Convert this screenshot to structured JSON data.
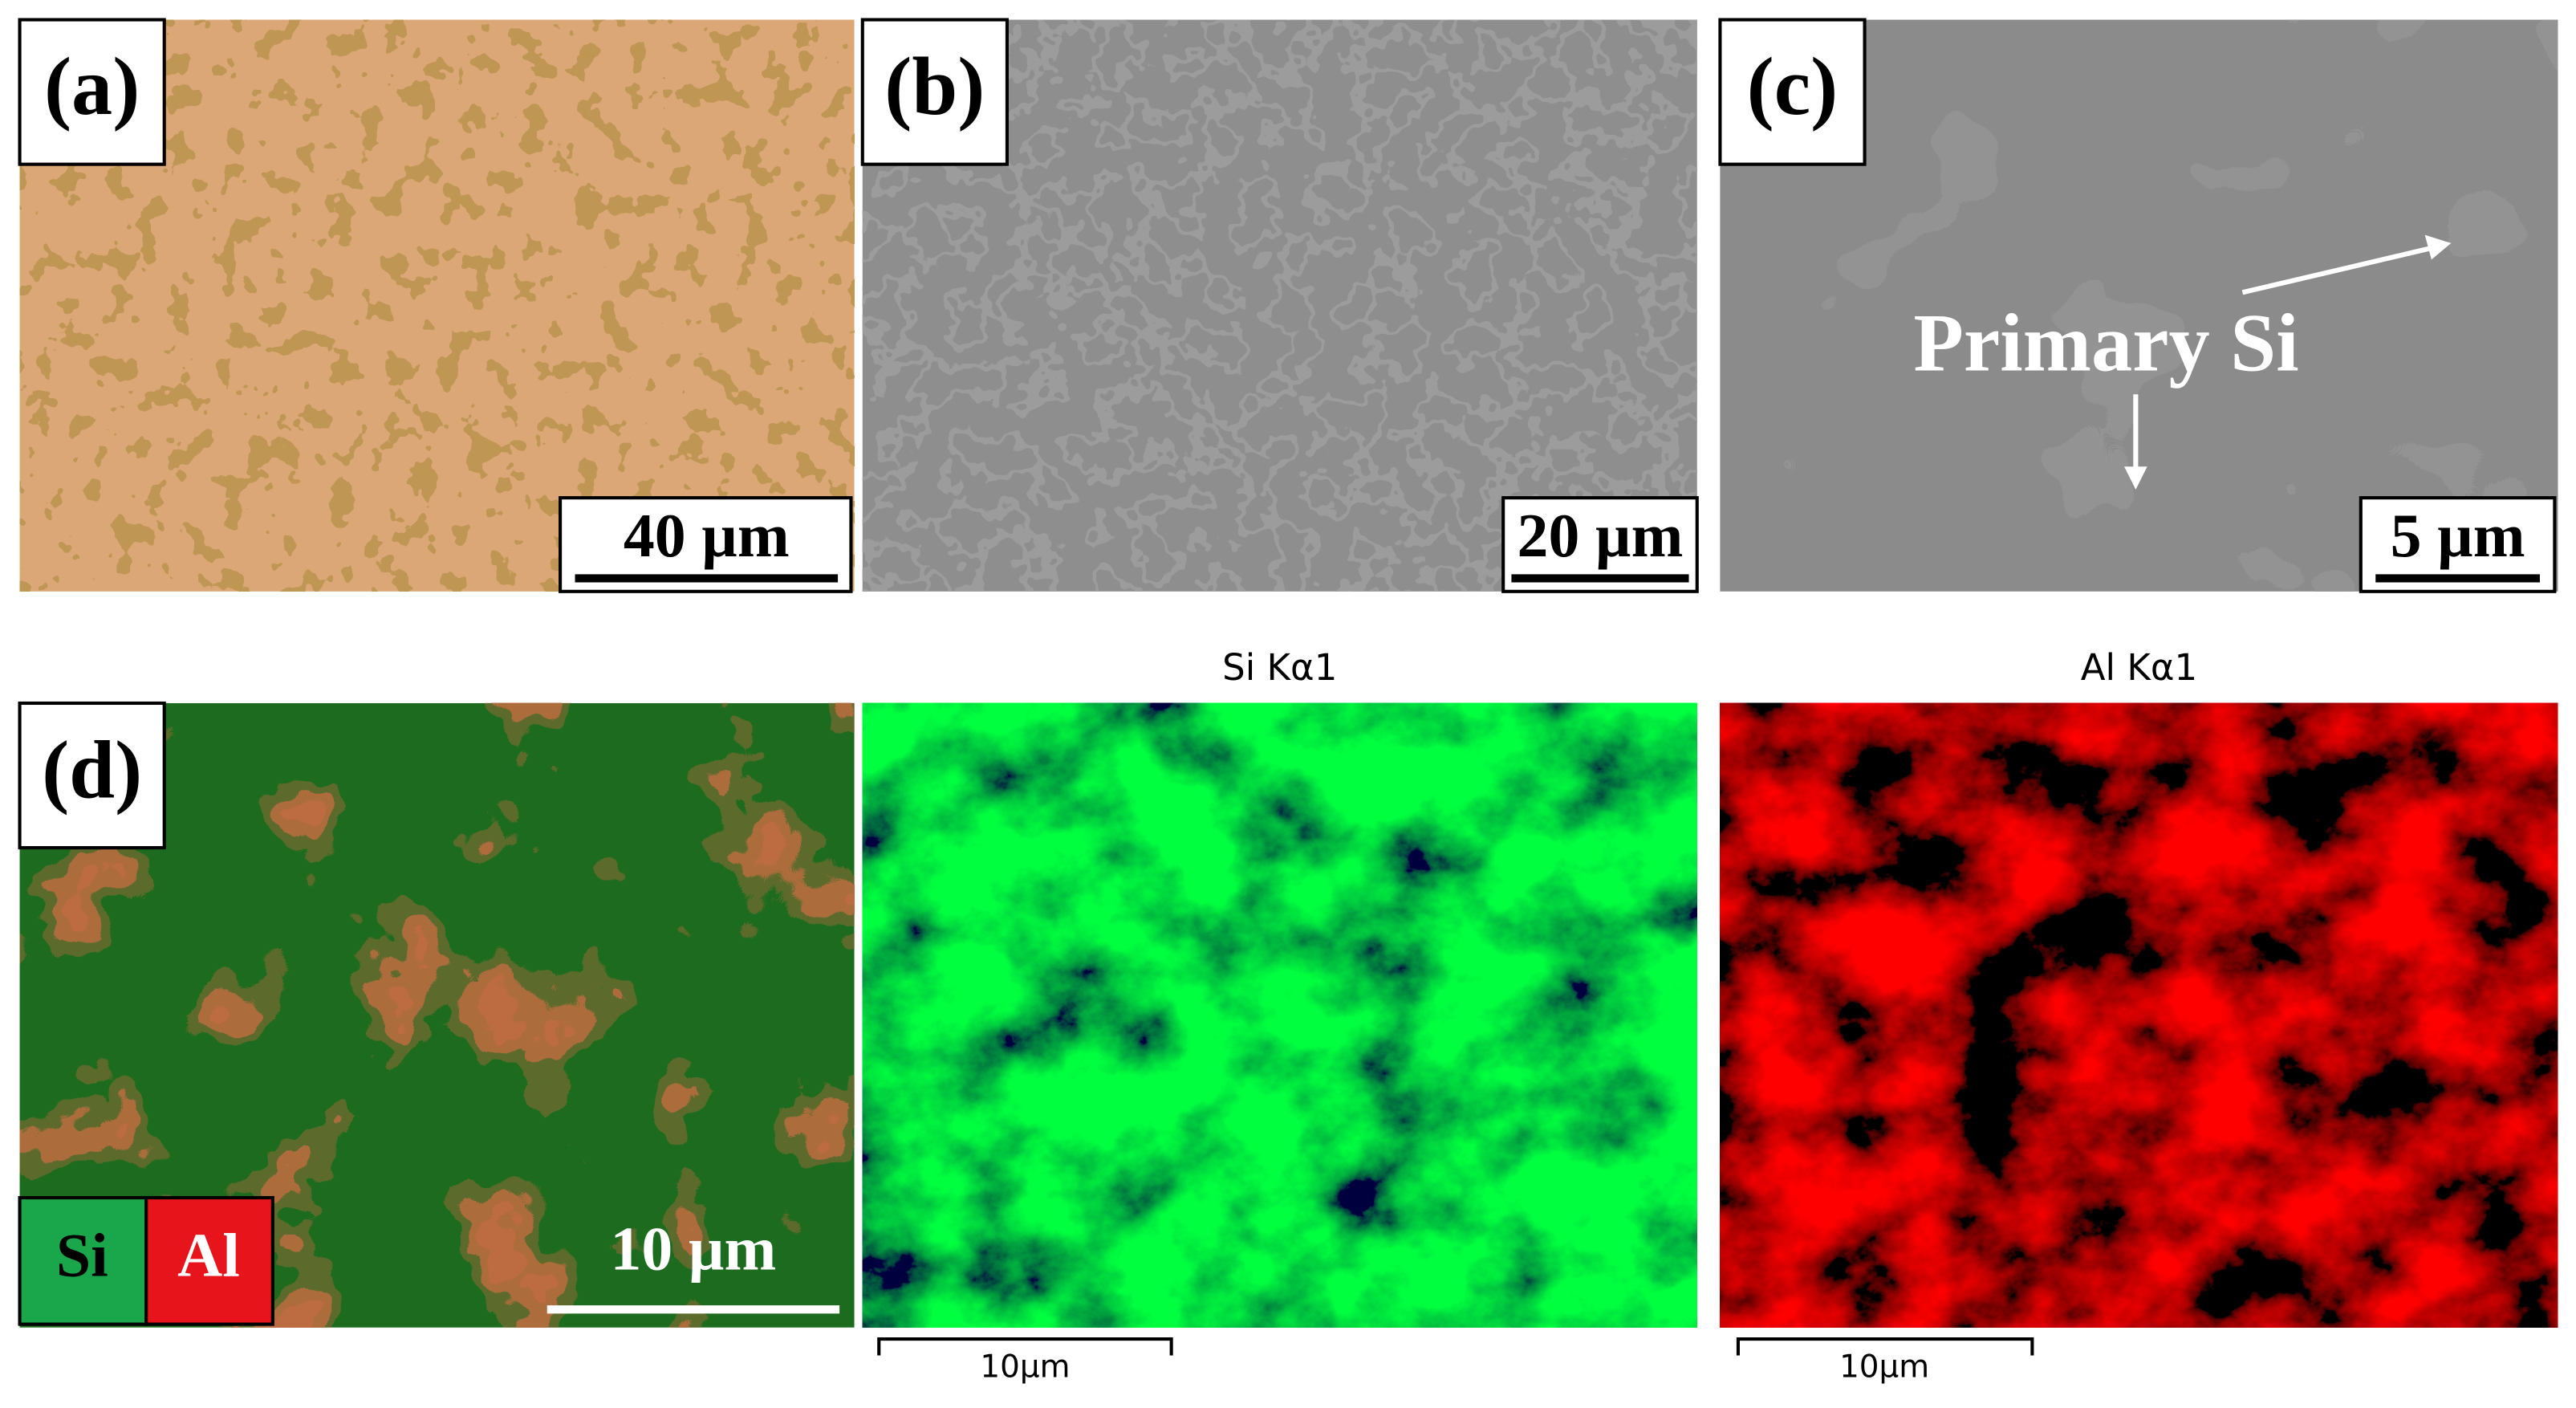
{
  "panels": [
    {
      "label": "(a)",
      "scale_bar": "40 µm"
    },
    {
      "label": "(b)",
      "scale_bar": "20 µm"
    },
    {
      "label": "(c)",
      "scale_bar": "5 µm",
      "annotation": "Primary Si"
    },
    {
      "label": "(d)",
      "scale_bar": "10 µm",
      "legend": [
        "Si",
        "Al"
      ]
    }
  ],
  "maps": [
    {
      "title": "Si Kα1",
      "scale_bar": "10µm"
    },
    {
      "title": "Al Kα1",
      "scale_bar": "10µm"
    }
  ]
}
